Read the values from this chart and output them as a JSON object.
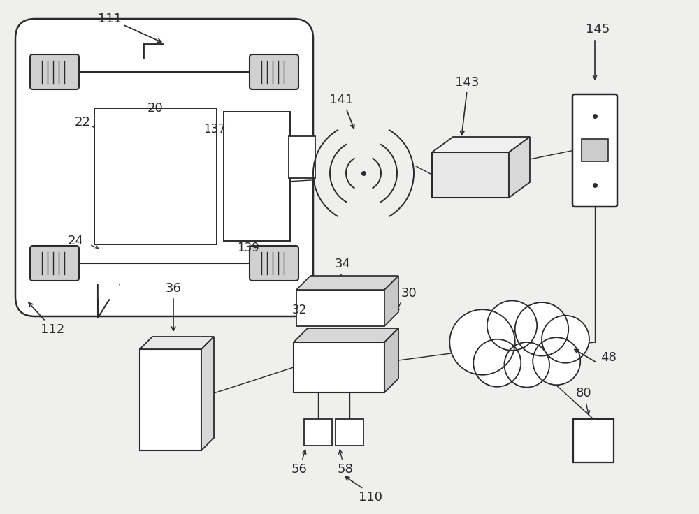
{
  "bg_color": "#efefed",
  "line_color": "#2a2a2a",
  "fig_w": 10.0,
  "fig_h": 7.36,
  "dpi": 100
}
